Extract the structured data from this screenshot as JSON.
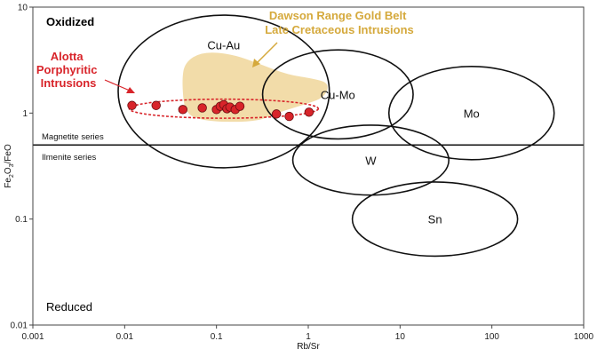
{
  "chart_data": {
    "type": "scatter",
    "xlabel": "Rb/Sr",
    "ylabel": "Fe2O3/FeO",
    "x_scale": "log",
    "y_scale": "log",
    "xlim": [
      0.001,
      1000
    ],
    "ylim": [
      0.01,
      10
    ],
    "x_ticks": [
      "0.001",
      "0.01",
      "0.1",
      "1",
      "10",
      "100",
      "1000"
    ],
    "y_ticks": [
      "0.01",
      "0.1",
      "1",
      "10"
    ],
    "corner_labels": {
      "top": "Oxidized",
      "bottom": "Reduced"
    },
    "boundary": {
      "y": 0.5,
      "above_label": "Magnetite series",
      "below_label": "Ilmenite series"
    },
    "fields": [
      {
        "label": "Cu-Au",
        "cx": 0.12,
        "cy": 1.6,
        "x_half_width_log": 1.15,
        "y_half_height_log": 0.72
      },
      {
        "label": "Cu-Mo",
        "cx": 2.1,
        "cy": 1.5,
        "x_half_width_log": 0.82,
        "y_half_height_log": 0.42
      },
      {
        "label": "Mo",
        "cx": 60,
        "cy": 1.0,
        "x_half_width_log": 0.9,
        "y_half_height_log": 0.44
      },
      {
        "label": "W",
        "cx": 4.8,
        "cy": 0.36,
        "x_half_width_log": 0.85,
        "y_half_height_log": 0.33
      },
      {
        "label": "Sn",
        "cx": 24,
        "cy": 0.1,
        "x_half_width_log": 0.9,
        "y_half_height_log": 0.35
      }
    ],
    "series": [
      {
        "name": "Dawson Range Gold Belt Late Cretaceous Intrusions",
        "label_lines": [
          "Dawson Range Gold Belt",
          "Late Cretaceous Intrusions"
        ],
        "color": "#f2dca9",
        "label_color": "#d5a93c",
        "type": "area",
        "outline": [
          [
            0.045,
            3.0
          ],
          [
            0.07,
            3.8
          ],
          [
            0.15,
            3.6
          ],
          [
            0.3,
            2.9
          ],
          [
            0.6,
            2.3
          ],
          [
            1.2,
            2.1
          ],
          [
            1.7,
            1.9
          ],
          [
            1.5,
            1.4
          ],
          [
            0.9,
            1.2
          ],
          [
            0.45,
            1.0
          ],
          [
            0.3,
            0.85
          ],
          [
            0.15,
            0.82
          ],
          [
            0.07,
            0.85
          ],
          [
            0.045,
            1.0
          ],
          [
            0.042,
            2.0
          ]
        ]
      },
      {
        "name": "Alotta Porphyritic Intrusions",
        "label_lines": [
          "Alotta",
          "Porphyritic",
          "Intrusions"
        ],
        "color": "#d8242a",
        "label_color": "#d8242a",
        "type": "scatter",
        "x": [
          0.012,
          0.022,
          0.043,
          0.07,
          0.1,
          0.11,
          0.12,
          0.13,
          0.14,
          0.16,
          0.18,
          0.45,
          0.62,
          1.02
        ],
        "y": [
          1.18,
          1.18,
          1.08,
          1.12,
          1.08,
          1.16,
          1.2,
          1.1,
          1.14,
          1.08,
          1.16,
          0.98,
          0.93,
          1.02
        ],
        "envelope": {
          "cx": 0.12,
          "cy": 1.1,
          "x_half_width_log": 1.03,
          "y_half_height_log": 0.09
        }
      }
    ]
  }
}
